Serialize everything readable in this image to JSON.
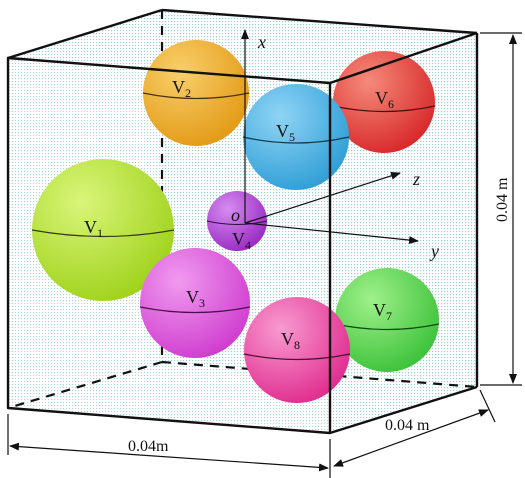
{
  "spheres": [
    {
      "id": "V1",
      "base": "V",
      "sub": "1",
      "color": "#9fd21a",
      "highlight": "#d9f57a"
    },
    {
      "id": "V2",
      "base": "V",
      "sub": "2",
      "color": "#e39a16",
      "highlight": "#f8cf6a"
    },
    {
      "id": "V3",
      "base": "V",
      "sub": "3",
      "color": "#cf3ccf",
      "highlight": "#f09af0"
    },
    {
      "id": "V4",
      "base": "V",
      "sub": "4",
      "color": "#9a2ac2",
      "highlight": "#d58cf0"
    },
    {
      "id": "V5",
      "base": "V",
      "sub": "5",
      "color": "#2e9ed6",
      "highlight": "#8fd4f5"
    },
    {
      "id": "V6",
      "base": "V",
      "sub": "6",
      "color": "#d8282a",
      "highlight": "#f58a7a"
    },
    {
      "id": "V7",
      "base": "V",
      "sub": "7",
      "color": "#3cc23a",
      "highlight": "#9ff08a"
    },
    {
      "id": "V8",
      "base": "V",
      "sub": "8",
      "color": "#e02c8e",
      "highlight": "#f89ad0"
    }
  ],
  "axes": {
    "x": "x",
    "y": "y",
    "z": "z",
    "origin": "o"
  },
  "dimensions": {
    "width": "0.04m",
    "depth": "0.04 m",
    "height": "0.04 m"
  }
}
